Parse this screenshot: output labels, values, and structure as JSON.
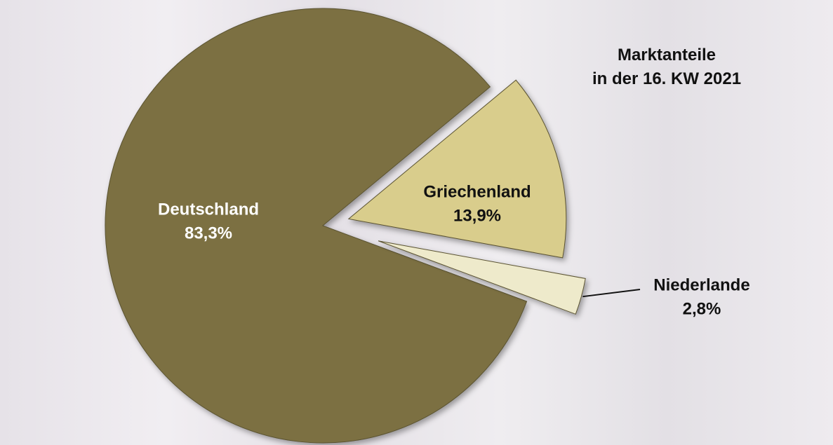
{
  "chart_data": {
    "type": "pie",
    "title": "Marktanteile\nin der 16. KW 2021",
    "categories": [
      "Deutschland",
      "Griechenland",
      "Niederlande"
    ],
    "values": [
      83.3,
      13.9,
      2.8
    ],
    "value_labels": [
      "83,3%",
      "13,9%",
      "2,8%"
    ],
    "colors": [
      "#7b7042",
      "#d9cd8c",
      "#eeeacb"
    ]
  }
}
